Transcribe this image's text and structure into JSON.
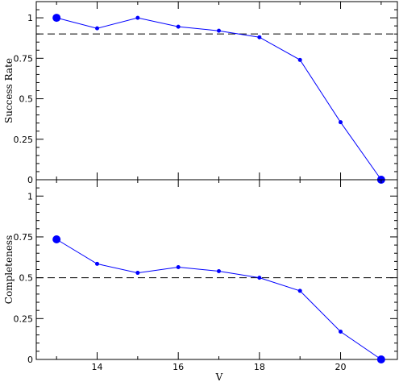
{
  "chart_data": [
    {
      "type": "line",
      "ylabel": "Success Rate",
      "xlim": [
        12.5,
        21.4
      ],
      "ylim": [
        0,
        1.1
      ],
      "x_ticks": [
        14,
        16,
        18,
        20
      ],
      "x_tick_labels_shown": false,
      "y_ticks": [
        0,
        0.25,
        0.5,
        0.75,
        1
      ],
      "y_tick_labels": [
        "0",
        "0.25",
        "0.5",
        "0.75",
        "1"
      ],
      "reference_line": 0.9,
      "series": [
        {
          "x": [
            13,
            14,
            15,
            16,
            17,
            18,
            19,
            20,
            21
          ],
          "y": [
            1.0,
            0.935,
            1.0,
            0.945,
            0.92,
            0.88,
            0.74,
            0.355,
            0.0
          ],
          "color": "#0000ff",
          "large_markers_at_x": [
            13,
            21
          ]
        }
      ]
    },
    {
      "type": "line",
      "xlabel": "V",
      "ylabel": "Completeness",
      "xlim": [
        12.5,
        21.4
      ],
      "ylim": [
        0,
        1.1
      ],
      "x_ticks": [
        14,
        16,
        18,
        20
      ],
      "x_tick_labels": [
        "14",
        "16",
        "18",
        "20"
      ],
      "y_ticks": [
        0,
        0.25,
        0.5,
        0.75,
        1
      ],
      "y_tick_labels": [
        "0",
        "0.25",
        "0.5",
        "0.75",
        "1"
      ],
      "reference_line": 0.5,
      "series": [
        {
          "x": [
            13,
            14,
            15,
            16,
            17,
            18,
            19,
            20,
            21
          ],
          "y": [
            0.735,
            0.585,
            0.53,
            0.565,
            0.54,
            0.5,
            0.42,
            0.17,
            0.0
          ],
          "color": "#0000ff",
          "large_markers_at_x": [
            13,
            21
          ]
        }
      ]
    }
  ]
}
